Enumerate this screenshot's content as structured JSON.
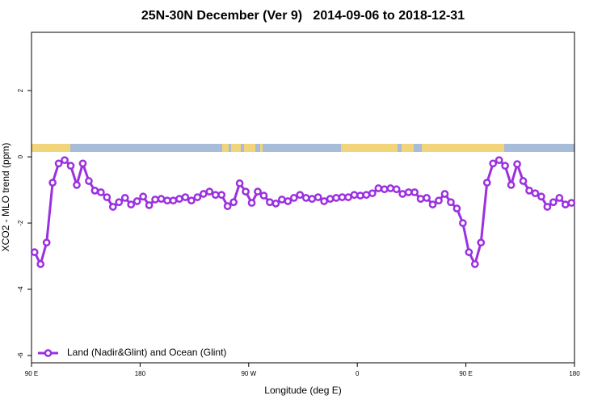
{
  "chart_data": {
    "type": "line",
    "title": "25N-30N December (Ver 9)   2014-09-06 to 2018-12-31",
    "x_label": "Longitude (deg E)",
    "y_label": "XCO2 - MLO trend (ppm)",
    "xlim": [
      90,
      540
    ],
    "ylim": [
      -6.22,
      3.76
    ],
    "xticks": [
      {
        "value": 90,
        "label": "90 E"
      },
      180,
      {
        "value": 270,
        "label": "90 W"
      },
      {
        "value": 360,
        "label": "0"
      },
      {
        "value": 450,
        "label": "90 E"
      },
      {
        "value": 540,
        "label": "180"
      }
    ],
    "yticks": [
      -6,
      -4,
      -2,
      0,
      2
    ],
    "legend": "lower left",
    "x": [
      92.5,
      97.5,
      102.5,
      107.5,
      112.5,
      117.5,
      122.5,
      127.5,
      132.5,
      137.5,
      142.5,
      147.5,
      152.5,
      157.5,
      162.5,
      167.5,
      172.5,
      177.5,
      182.5,
      187.5,
      192.5,
      197.5,
      202.5,
      207.5,
      212.5,
      217.5,
      222.5,
      227.5,
      232.5,
      237.5,
      242.5,
      247.5,
      252.5,
      257.5,
      262.5,
      267.5,
      272.5,
      277.5,
      282.5,
      287.5,
      292.5,
      297.5,
      302.5,
      307.5,
      312.5,
      317.5,
      322.5,
      327.5,
      332.5,
      337.5,
      342.5,
      347.5,
      352.5,
      357.5,
      362.5,
      367.5,
      372.5,
      377.5,
      382.5,
      387.5,
      392.5,
      397.5,
      402.5,
      407.5,
      412.5,
      417.5,
      422.5,
      427.5,
      432.5,
      437.5,
      442.5,
      447.5,
      452.5,
      457.5,
      462.5,
      467.5,
      472.5,
      477.5,
      482.5,
      487.5,
      492.5,
      497.5,
      502.5,
      507.5,
      512.5,
      517.5,
      522.5,
      527.5,
      532.5,
      537.5
    ],
    "series": [
      {
        "name": "Land (Nadir&Glint) and Ocean (Glint)",
        "color": "#9b30e0",
        "values": [
          -2.88,
          -3.24,
          -2.59,
          -0.78,
          -0.2,
          -0.1,
          -0.27,
          -0.85,
          -0.2,
          -0.73,
          -1.02,
          -1.07,
          -1.22,
          -1.51,
          -1.37,
          -1.24,
          -1.44,
          -1.34,
          -1.2,
          -1.46,
          -1.29,
          -1.27,
          -1.32,
          -1.32,
          -1.27,
          -1.22,
          -1.32,
          -1.22,
          -1.12,
          -1.05,
          -1.15,
          -1.15,
          -1.49,
          -1.37,
          -0.8,
          -1.05,
          -1.39,
          -1.05,
          -1.17,
          -1.37,
          -1.41,
          -1.29,
          -1.34,
          -1.24,
          -1.15,
          -1.24,
          -1.27,
          -1.22,
          -1.34,
          -1.27,
          -1.24,
          -1.22,
          -1.22,
          -1.15,
          -1.17,
          -1.15,
          -1.1,
          -0.95,
          -0.98,
          -0.95,
          -0.98,
          -1.12,
          -1.07,
          -1.07,
          -1.27,
          -1.24,
          -1.44,
          -1.32,
          -1.12,
          -1.37,
          -1.56,
          -2.0,
          -2.88,
          -3.24,
          -2.59,
          -0.78,
          -0.2,
          -0.1,
          -0.27,
          -0.85,
          -0.22,
          -0.73,
          -1.02,
          -1.1,
          -1.2,
          -1.51,
          -1.37,
          -1.24,
          -1.44,
          -1.39
        ]
      }
    ]
  }
}
